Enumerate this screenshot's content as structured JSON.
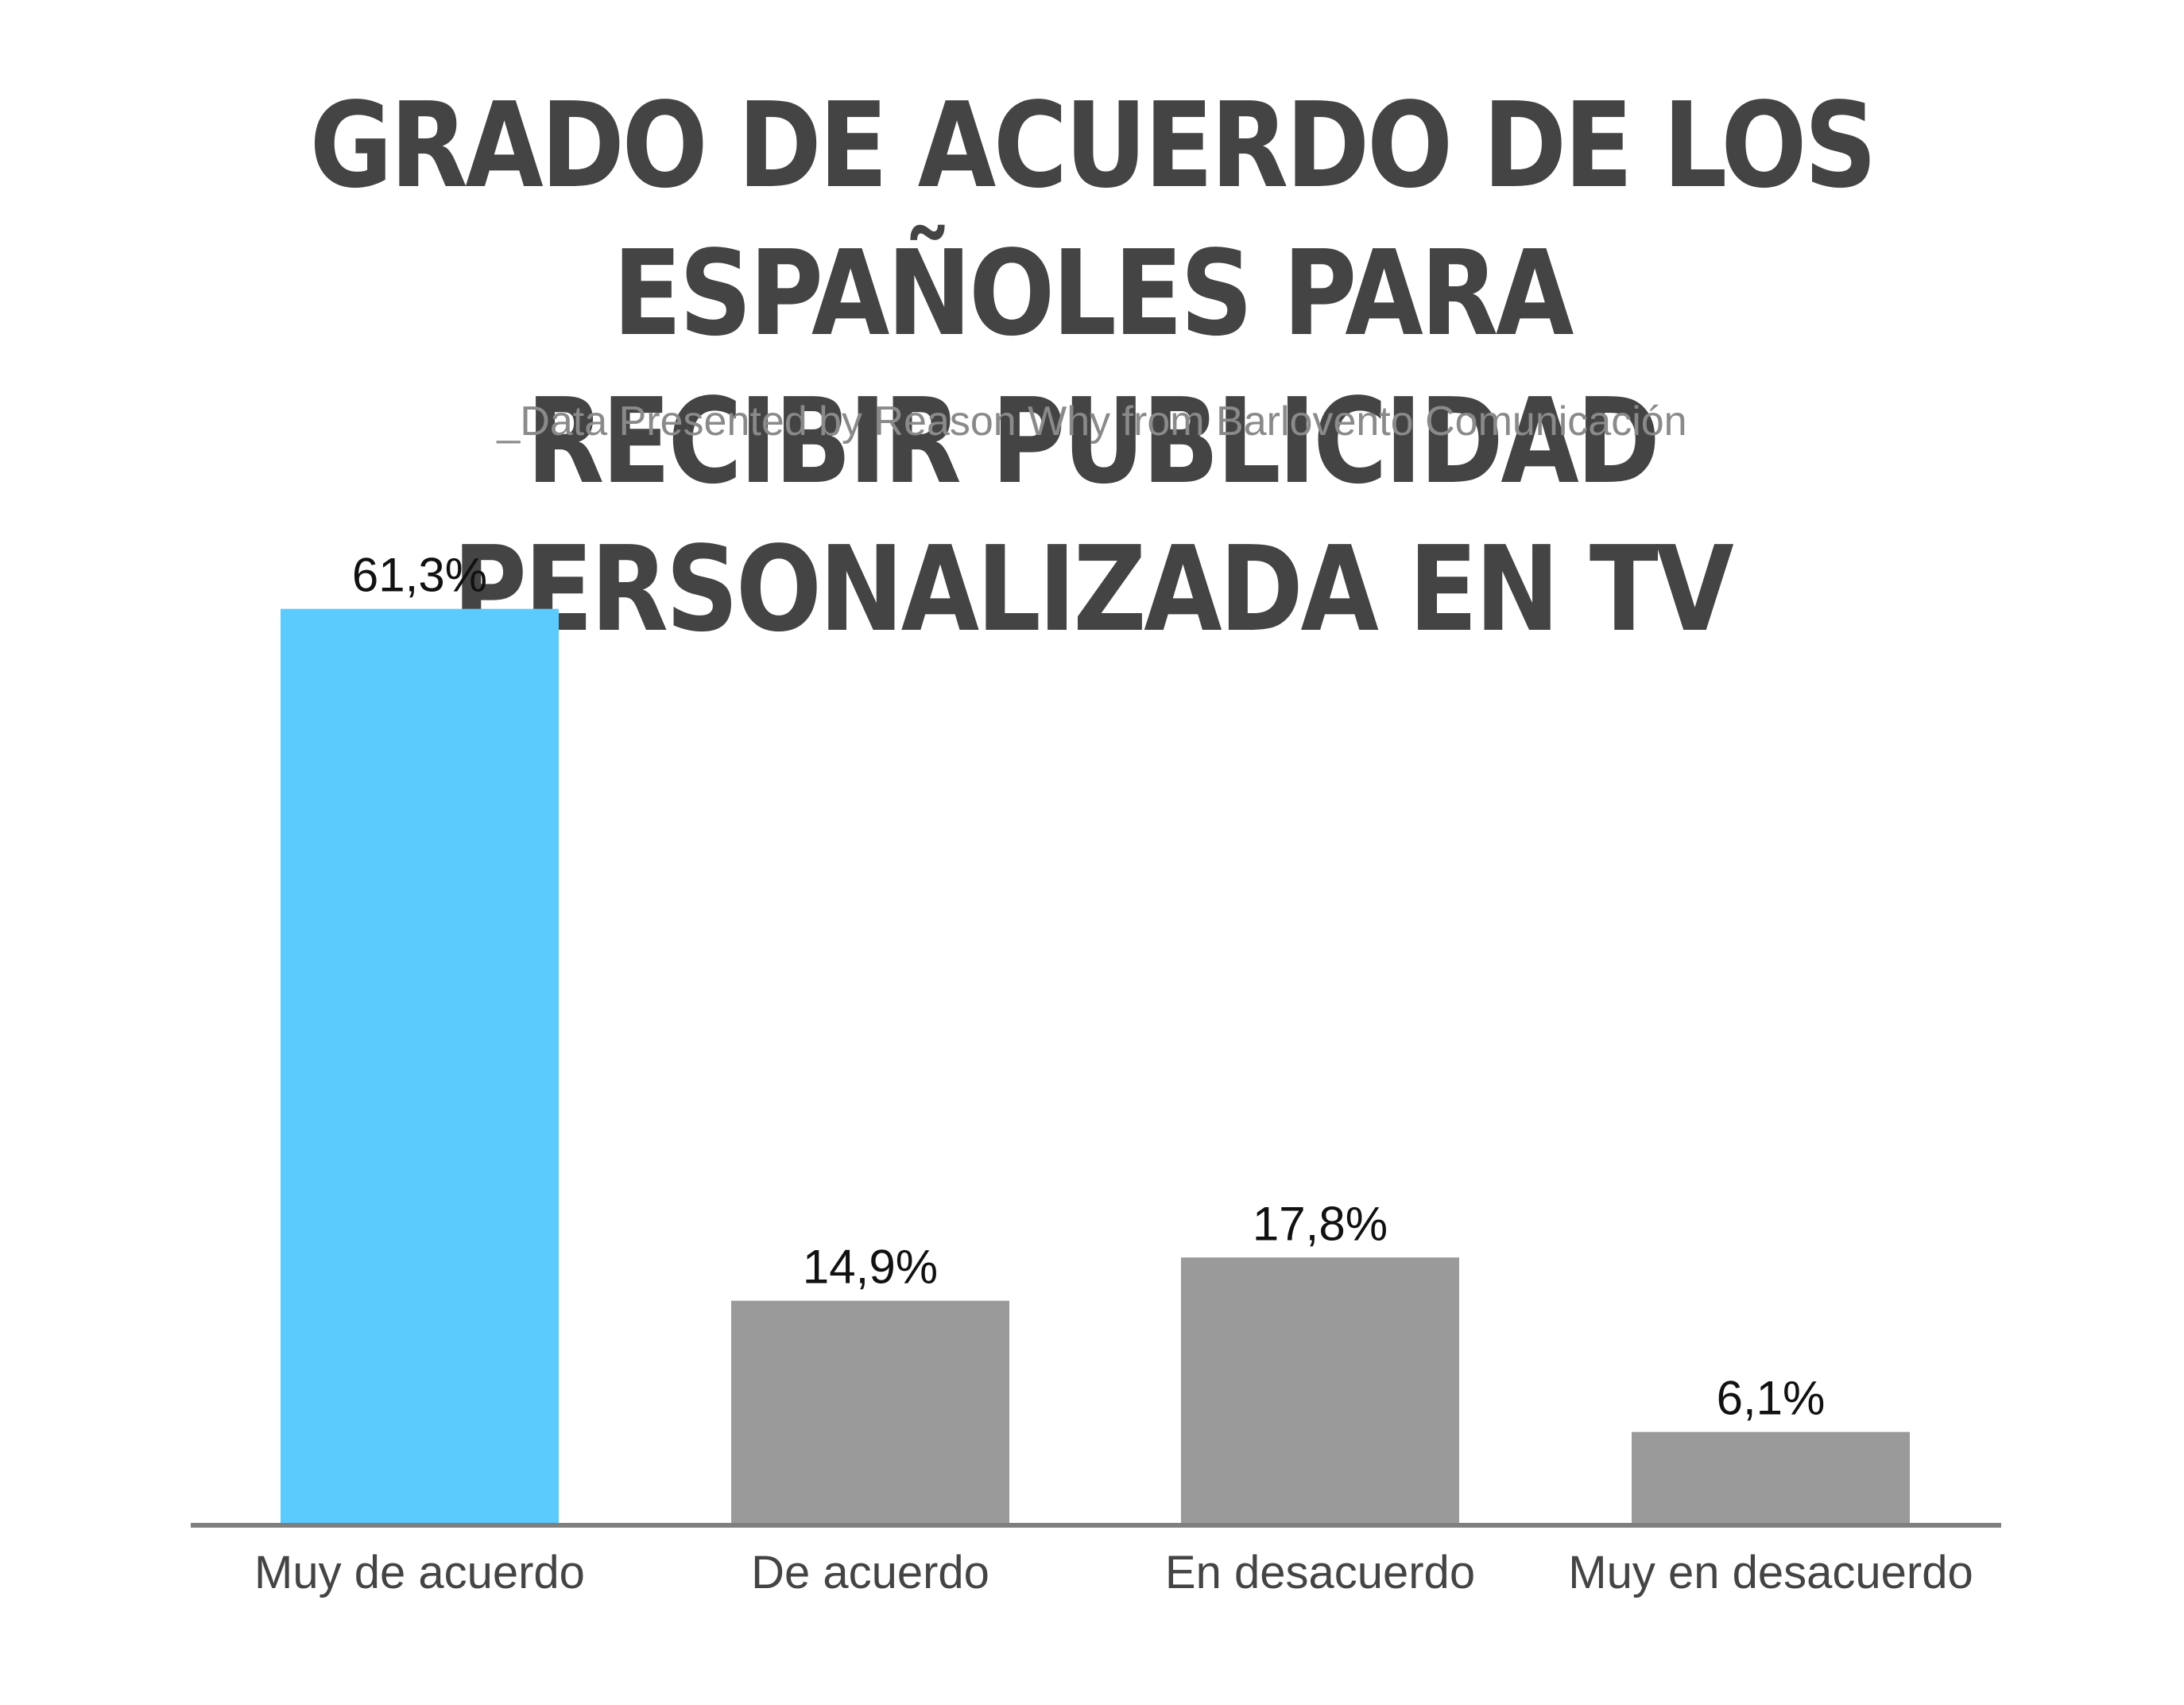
{
  "title_line1": "GRADO DE ACUERDO DE LOS ESPAÑOLES PARA",
  "title_line2": "RECIBIR PUBLICIDAD PERSONALIZADA EN TV",
  "subtitle": "_Data Presented by Reason Why from Barlovento Comunicación",
  "colors": {
    "highlight": "#5bcbfd",
    "bar": "#9a9a9a",
    "axis": "#7f7f7f",
    "title": "#444444"
  },
  "chart_data": {
    "type": "bar",
    "title": "GRADO DE ACUERDO DE LOS ESPAÑOLES PARA RECIBIR PUBLICIDAD PERSONALIZADA EN TV",
    "subtitle": "_Data Presented by Reason Why from Barlovento Comunicación",
    "categories": [
      "Muy de acuerdo",
      "De acuerdo",
      "En desacuerdo",
      "Muy en desacuerdo"
    ],
    "values": [
      61.3,
      14.9,
      17.8,
      6.1
    ],
    "value_labels": [
      "61,3%",
      "14,9%",
      "17,8%",
      "6,1%"
    ],
    "highlighted_index": 0,
    "xlabel": "",
    "ylabel": "",
    "grid": false,
    "legend": "none"
  }
}
